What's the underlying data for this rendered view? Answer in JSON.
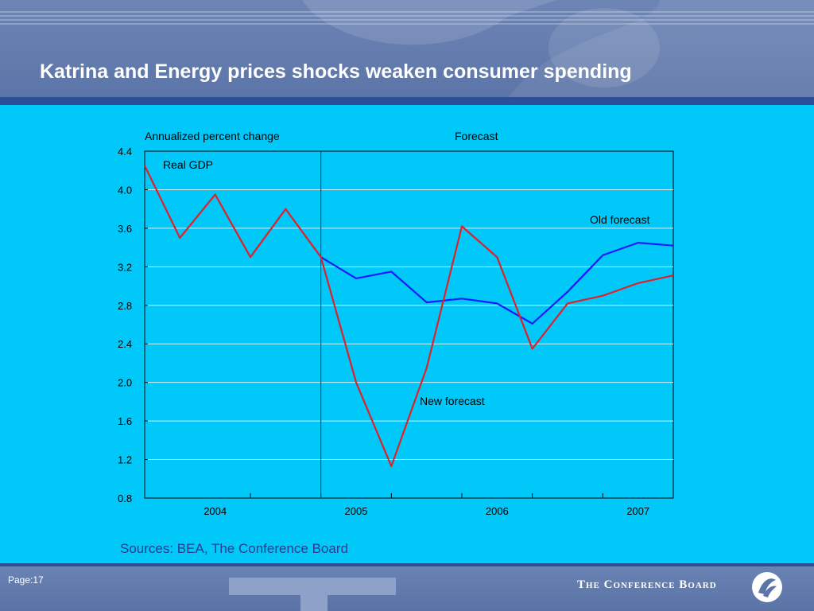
{
  "slide": {
    "title": "Katrina and Energy prices shocks weaken consumer spending",
    "sources": "Sources: BEA, The Conference Board",
    "page_label": "Page:17",
    "brand": "The Conference Board"
  },
  "colors": {
    "background": "#00c8f8",
    "header": "#6d85b5",
    "band": "#2d4f9a",
    "new_forecast": "#e0202a",
    "old_forecast": "#1a1aff"
  },
  "chart_data": {
    "type": "line",
    "title": "",
    "ylabel": "Annualized percent change",
    "ylim": [
      0.8,
      4.4
    ],
    "yticks": [
      "0.8",
      "1.2",
      "1.6",
      "2.0",
      "2.4",
      "2.8",
      "3.2",
      "3.6",
      "4.0",
      "4.4"
    ],
    "xlim": [
      2003.75,
      2007.5
    ],
    "year_labels": [
      "2004",
      "2005",
      "2006",
      "2007"
    ],
    "forecast_start": 2005.0,
    "forecast_label": "Forecast",
    "annotations": {
      "real_gdp": "Real GDP",
      "old_forecast": "Old forecast",
      "new_forecast": "New forecast"
    },
    "series": [
      {
        "name": "Real GDP",
        "x": [
          2003.75,
          2004.0,
          2004.25,
          2004.5,
          2004.75,
          2005.0
        ],
        "values": [
          4.25,
          3.5,
          3.95,
          3.3,
          3.8,
          3.3
        ]
      },
      {
        "name": "New forecast",
        "x": [
          2005.0,
          2005.25,
          2005.5,
          2005.75,
          2006.0,
          2006.25,
          2006.5,
          2006.75,
          2007.0,
          2007.25,
          2007.5
        ],
        "values": [
          3.3,
          2.0,
          1.13,
          2.15,
          3.62,
          3.3,
          2.35,
          2.82,
          2.9,
          3.03,
          3.11
        ]
      },
      {
        "name": "Old forecast",
        "x": [
          2005.0,
          2005.25,
          2005.5,
          2005.75,
          2006.0,
          2006.25,
          2006.5,
          2006.75,
          2007.0,
          2007.25,
          2007.5
        ],
        "values": [
          3.3,
          3.08,
          3.15,
          2.83,
          2.87,
          2.82,
          2.61,
          2.94,
          3.32,
          3.45,
          3.42
        ]
      }
    ]
  }
}
